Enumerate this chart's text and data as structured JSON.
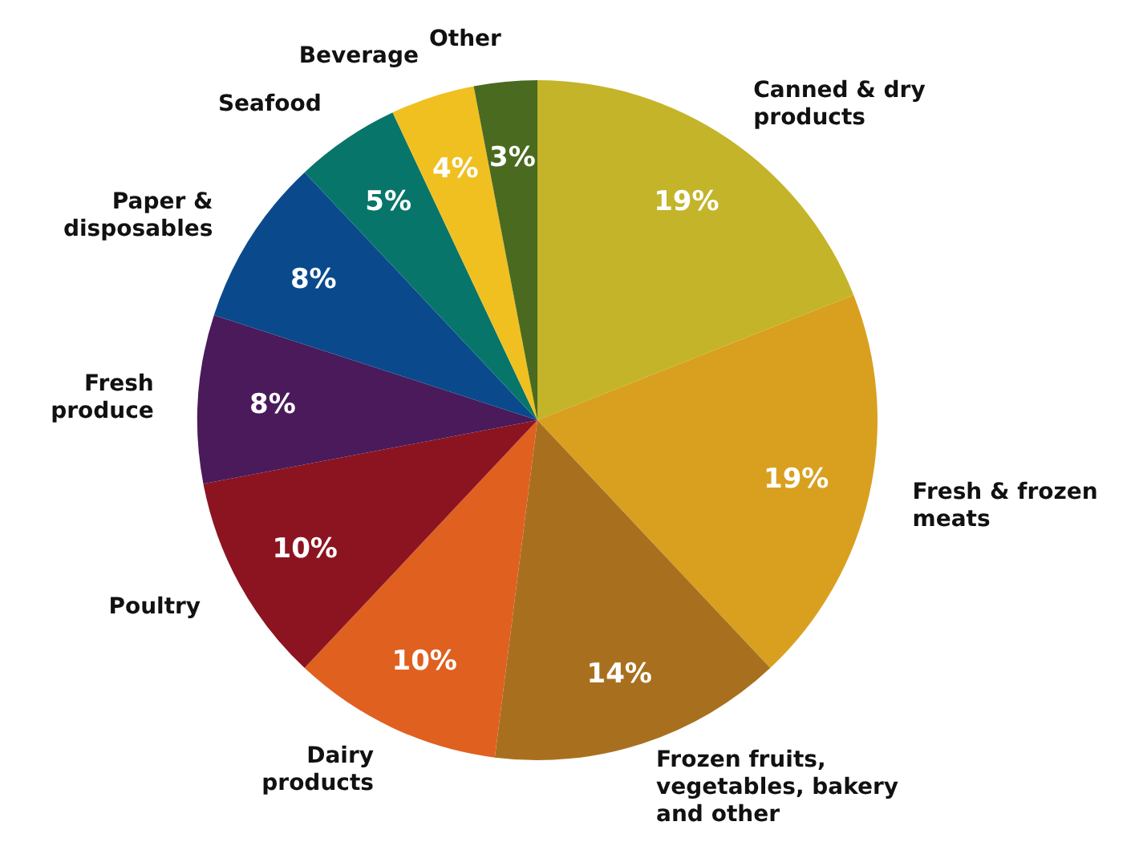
{
  "chart_data": {
    "type": "pie",
    "categories": [
      "Canned & dry\nproducts",
      "Fresh & frozen\nmeats",
      "Frozen fruits,\nvegetables, bakery\nand other",
      "Dairy\nproducts",
      "Poultry",
      "Fresh\nproduce",
      "Paper &\ndisposables",
      "Seafood",
      "Beverage",
      "Other"
    ],
    "values": [
      19,
      19,
      14,
      10,
      10,
      8,
      8,
      5,
      4,
      3
    ],
    "value_labels": [
      "19%",
      "19%",
      "14%",
      "10%",
      "10%",
      "8%",
      "8%",
      "5%",
      "4%",
      "3%"
    ],
    "colors": [
      "#c3b42a",
      "#d9a020",
      "#a8701e",
      "#e06020",
      "#8c1420",
      "#4a1a5a",
      "#0a4a8c",
      "#08756a",
      "#f0c020",
      "#4a6a20"
    ]
  }
}
